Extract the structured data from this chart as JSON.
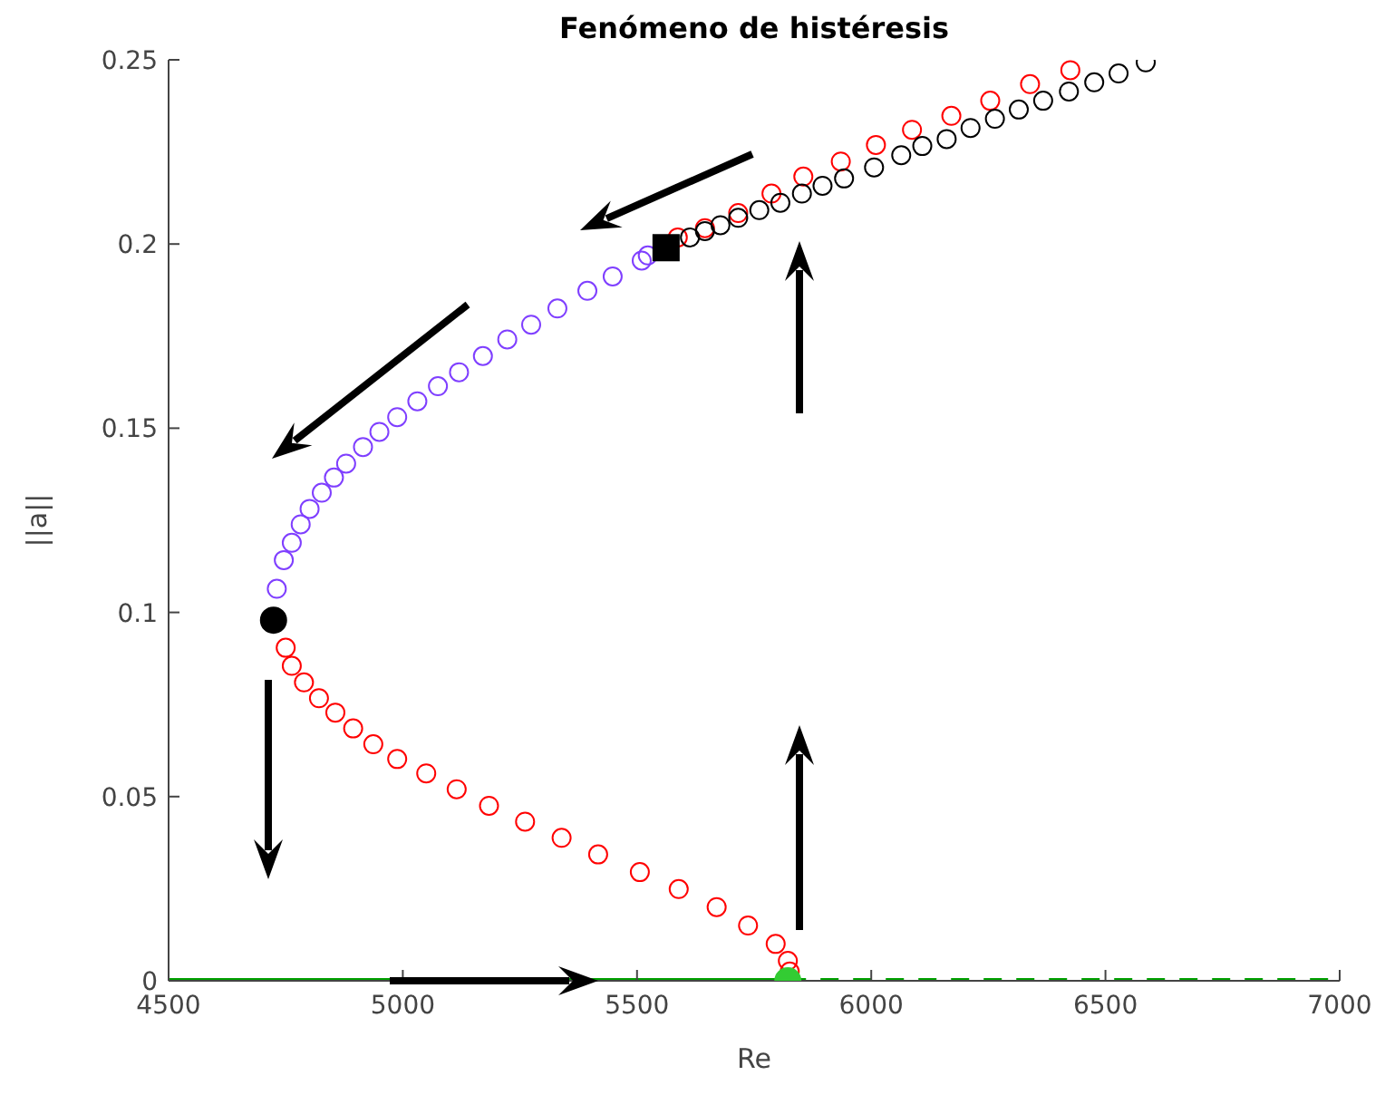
{
  "chart_data": {
    "type": "scatter",
    "title": "Fenómeno de histéresis",
    "xlabel": "Re",
    "ylabel": "||a||",
    "xlim": [
      4500,
      7000
    ],
    "xticks": [
      4500,
      5000,
      5500,
      6000,
      6500,
      7000
    ],
    "ylim": [
      0,
      0.25
    ],
    "yticks": [
      0,
      0.05,
      0.1,
      0.15,
      0.2,
      0.25
    ],
    "series": [
      {
        "type": "line",
        "color": "#00a000",
        "line_style": "solid",
        "marker": "none",
        "x": [
          4500,
          5822
        ],
        "values": [
          0,
          0
        ]
      },
      {
        "type": "line",
        "color": "#00a000",
        "line_style": "dashed",
        "marker": "none",
        "x": [
          5822,
          7000
        ],
        "values": [
          0,
          0
        ]
      },
      {
        "color": "#ff0000",
        "marker": "circle",
        "x": [
          4750,
          4763,
          4789,
          4821,
          4856,
          4894,
          4937,
          4988,
          5050,
          5115,
          5184,
          5261,
          5339,
          5417,
          5506,
          5589,
          5670,
          5737,
          5796,
          5822,
          5826
        ],
        "values": [
          0.0904,
          0.0855,
          0.081,
          0.0767,
          0.0728,
          0.0685,
          0.0642,
          0.0602,
          0.0563,
          0.052,
          0.0475,
          0.0432,
          0.0388,
          0.0343,
          0.0295,
          0.0249,
          0.02,
          0.015,
          0.01,
          0.0054,
          0.0025
        ]
      },
      {
        "color": "#7f3fff",
        "marker": "circle",
        "x": [
          4731,
          4746,
          4763,
          4782,
          4801,
          4827,
          4853,
          4879,
          4915,
          4950,
          4988,
          5031,
          5075,
          5120,
          5171,
          5223,
          5274,
          5330,
          5394,
          5448,
          5510,
          5523
        ],
        "values": [
          0.1064,
          0.1142,
          0.1189,
          0.1239,
          0.1281,
          0.1325,
          0.1366,
          0.1404,
          0.1449,
          0.149,
          0.153,
          0.1573,
          0.1614,
          0.1652,
          0.1696,
          0.1741,
          0.1781,
          0.1825,
          0.1873,
          0.1912,
          0.1955,
          0.1969
        ]
      },
      {
        "color": "#ff0000",
        "marker": "circle",
        "x": [
          5587,
          5645,
          5716,
          5787,
          5855,
          5935,
          6010,
          6087,
          6171,
          6254,
          6339,
          6425
        ],
        "values": [
          0.2018,
          0.2043,
          0.2084,
          0.2137,
          0.2183,
          0.2224,
          0.2269,
          0.231,
          0.2348,
          0.2389,
          0.2434,
          0.2472
        ]
      },
      {
        "color": "#000000",
        "marker": "circle",
        "x": [
          5613,
          5645,
          5678,
          5716,
          5761,
          5806,
          5852,
          5896,
          5942,
          6006,
          6064,
          6109,
          6161,
          6212,
          6264,
          6315,
          6367,
          6422,
          6476,
          6528,
          6586
        ],
        "values": [
          0.2018,
          0.2035,
          0.2051,
          0.2071,
          0.2092,
          0.2112,
          0.2137,
          0.2158,
          0.2178,
          0.2208,
          0.2241,
          0.2266,
          0.2285,
          0.2315,
          0.234,
          0.2365,
          0.2389,
          0.2414,
          0.2439,
          0.2463,
          0.2493
        ]
      },
      {
        "color": "#000000",
        "marker": "square",
        "x": [
          5562
        ],
        "values": [
          0.199
        ]
      },
      {
        "color": "#000000",
        "marker": "circle",
        "x": [
          4724
        ],
        "values": [
          0.0979
        ]
      },
      {
        "color": "#33cc33",
        "marker": "circle",
        "x": [
          5822
        ],
        "values": [
          0
        ]
      }
    ]
  }
}
